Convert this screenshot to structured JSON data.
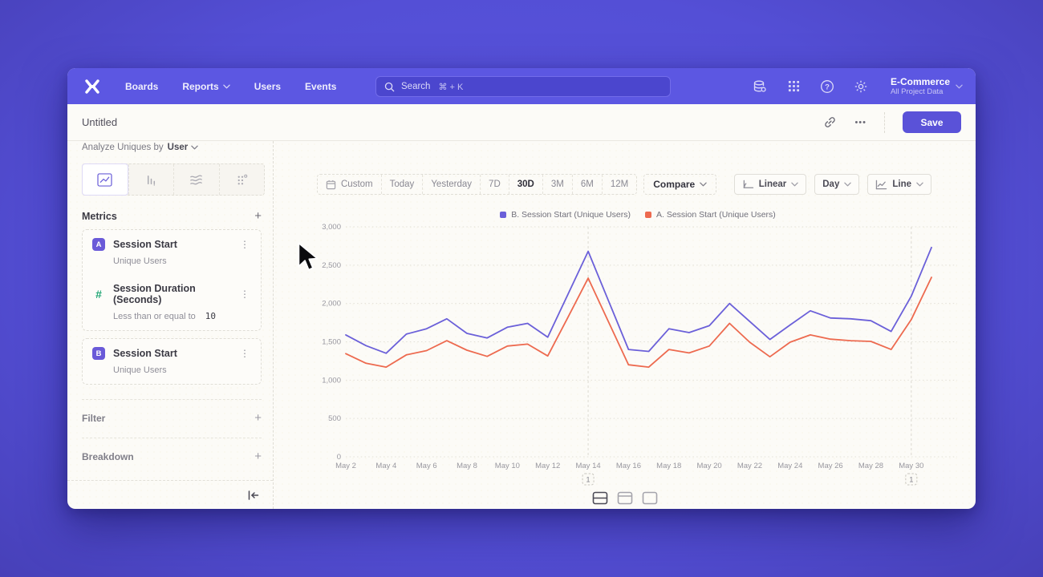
{
  "nav": {
    "links": [
      {
        "label": "Boards"
      },
      {
        "label": "Reports",
        "chevron": true
      },
      {
        "label": "Users"
      },
      {
        "label": "Events"
      }
    ],
    "search": {
      "label": "Search",
      "shortcut": "⌘ + K"
    },
    "project": {
      "name": "E-Commerce",
      "subtitle": "All Project Data"
    }
  },
  "header": {
    "title": "Untitled",
    "save_label": "Save"
  },
  "icons": {
    "more": "•••",
    "kebab": "⋮",
    "plus": "+"
  },
  "sidebar": {
    "analyze_label": "Analyze Uniques by",
    "analyze_value": "User",
    "metrics_title": "Metrics",
    "metric_cards": [
      {
        "items": [
          {
            "badge": "A",
            "badge_bg": "#6A5AD8",
            "badge_color": "#FFFFFF",
            "title": "Session Start",
            "subtitle": "Unique Users"
          },
          {
            "badge": "#",
            "badge_bg": "transparent",
            "badge_color": "#21A675",
            "title": "Session Duration (Seconds)",
            "subtitle": "Less than or equal to",
            "value": "10"
          }
        ]
      },
      {
        "items": [
          {
            "badge": "B",
            "badge_bg": "#6A5AD8",
            "badge_color": "#FFFFFF",
            "title": "Session Start",
            "subtitle": "Unique Users"
          }
        ]
      }
    ],
    "filter_label": "Filter",
    "breakdown_label": "Breakdown"
  },
  "toolbar": {
    "ranges": [
      "Custom",
      "Today",
      "Yesterday",
      "7D",
      "30D",
      "3M",
      "6M",
      "12M"
    ],
    "active_range": "30D",
    "compare_label": "Compare",
    "scale_label": "Linear",
    "interval_label": "Day",
    "chart_type_label": "Line"
  },
  "chart_data": {
    "type": "line",
    "x": [
      "May 2",
      "May 3",
      "May 4",
      "May 5",
      "May 6",
      "May 7",
      "May 8",
      "May 9",
      "May 10",
      "May 11",
      "May 12",
      "May 13",
      "May 14",
      "May 15",
      "May 16",
      "May 17",
      "May 18",
      "May 19",
      "May 20",
      "May 21",
      "May 22",
      "May 23",
      "May 24",
      "May 25",
      "May 26",
      "May 27",
      "May 28",
      "May 29",
      "May 30",
      "May 31"
    ],
    "x_tick_step": 2,
    "ylim": [
      0,
      3000
    ],
    "yticks": [
      0,
      500,
      1000,
      1500,
      2000,
      2500,
      3000
    ],
    "grid": "dotted-horizontal",
    "legend_position": "top-center",
    "series": [
      {
        "name": "B. Session Start (Unique Users)",
        "color": "#6B60D9",
        "values": [
          1590,
          1450,
          1350,
          1600,
          1670,
          1800,
          1610,
          1550,
          1690,
          1740,
          1560,
          2120,
          2680,
          2040,
          1400,
          1375,
          1670,
          1620,
          1710,
          2000,
          1765,
          1530,
          1720,
          1905,
          1810,
          1800,
          1775,
          1635,
          2095,
          2730
        ]
      },
      {
        "name": "A. Session Start (Unique Users)",
        "color": "#ED6A4F",
        "values": [
          1345,
          1220,
          1170,
          1330,
          1385,
          1515,
          1390,
          1310,
          1445,
          1470,
          1315,
          1820,
          2330,
          1765,
          1200,
          1170,
          1400,
          1355,
          1445,
          1740,
          1495,
          1305,
          1495,
          1590,
          1535,
          1515,
          1505,
          1400,
          1790,
          2340
        ]
      }
    ],
    "annotations": [
      {
        "x_index": 12,
        "x_label": "May 14",
        "label": "1"
      },
      {
        "x_index": 28,
        "x_label": "May 30",
        "label": "1"
      }
    ]
  }
}
